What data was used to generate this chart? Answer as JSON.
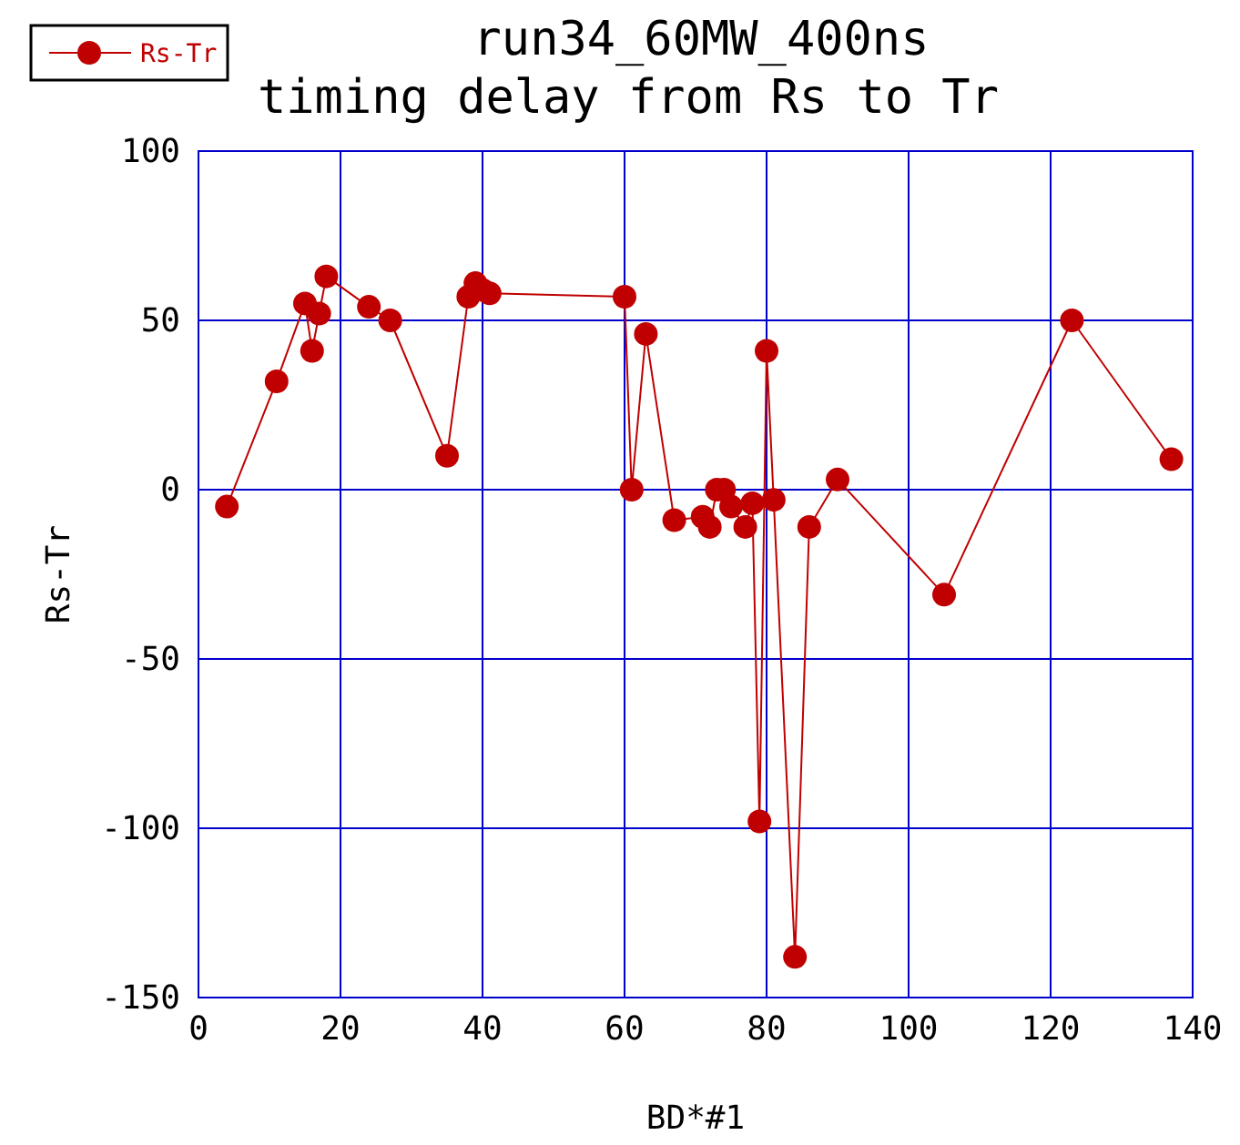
{
  "chart_data": {
    "type": "line",
    "title": "run34_60MW_400ns",
    "subtitle": "timing delay from Rs to Tr",
    "xlabel": "BD*#1",
    "ylabel": "Rs-Tr",
    "x": [
      4,
      11,
      15,
      16,
      17,
      18,
      24,
      27,
      35,
      38,
      39,
      40,
      41,
      60,
      61,
      63,
      67,
      71,
      72,
      73,
      74,
      75,
      77,
      78,
      79,
      80,
      81,
      84,
      86,
      90,
      105,
      123,
      137
    ],
    "series": [
      {
        "name": "Rs-Tr",
        "color": "#c00000",
        "values": [
          -5,
          32,
          55,
          41,
          52,
          63,
          54,
          50,
          10,
          57,
          61,
          59,
          58,
          57,
          0,
          46,
          -9,
          -8,
          -11,
          0,
          0,
          -5,
          -11,
          -4,
          -98,
          41,
          -3,
          -138,
          -11,
          3,
          -31,
          50,
          9
        ]
      }
    ],
    "xlim": [
      0,
      140
    ],
    "xticks": [
      0,
      20,
      40,
      60,
      80,
      100,
      120,
      140
    ],
    "ylim": [
      -150,
      100
    ],
    "yticks": [
      -150,
      -100,
      -50,
      0,
      50,
      100
    ],
    "grid": true,
    "legend": "top left",
    "marker": "circle",
    "line_style": "solid"
  }
}
